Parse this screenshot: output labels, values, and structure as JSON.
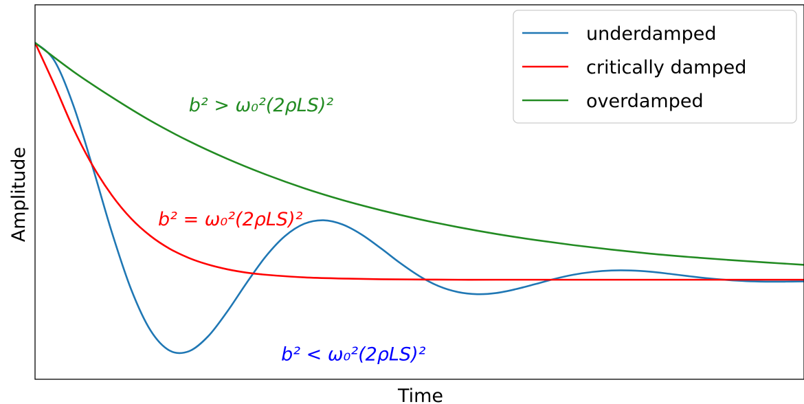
{
  "chart_data": {
    "type": "line",
    "title": "",
    "xlabel": "Time",
    "ylabel": "Amplitude",
    "xlim": [
      0,
      10
    ],
    "ylim": [
      -0.42,
      1.16
    ],
    "grid": false,
    "x_ticks_shown": false,
    "y_ticks_shown": false,
    "legend_position": "top-right",
    "series": [
      {
        "name": "underdamped",
        "color": "#1f77b4",
        "x": [
          0,
          0.25,
          0.5,
          0.75,
          1.0,
          1.25,
          1.5,
          1.75,
          2.0,
          2.25,
          2.5,
          2.75,
          3.0,
          3.25,
          3.5,
          3.75,
          4.0,
          4.25,
          4.5,
          4.75,
          5.0,
          5.25,
          5.5,
          5.75,
          6.0,
          6.25,
          6.5,
          6.75,
          7.0,
          7.25,
          7.5,
          7.75,
          8.0,
          8.25,
          8.5,
          8.75,
          9.0,
          9.25,
          9.5,
          9.75,
          10.0
        ],
        "y": [
          1.0,
          0.925,
          0.734,
          0.474,
          0.199,
          -0.041,
          -0.213,
          -0.299,
          -0.302,
          -0.239,
          -0.134,
          -0.014,
          0.098,
          0.184,
          0.236,
          0.251,
          0.233,
          0.19,
          0.132,
          0.07,
          0.015,
          -0.027,
          -0.052,
          -0.061,
          -0.056,
          -0.04,
          -0.019,
          0.003,
          0.021,
          0.033,
          0.039,
          0.039,
          0.034,
          0.025,
          0.015,
          0.006,
          -0.001,
          -0.006,
          -0.008,
          -0.008,
          -0.007
        ]
      },
      {
        "name": "critically damped",
        "color": "#ff0000",
        "x": [
          0,
          0.25,
          0.5,
          0.75,
          1.0,
          1.25,
          1.5,
          1.75,
          2.0,
          2.25,
          2.5,
          2.75,
          3.0,
          3.5,
          4.0,
          4.5,
          5.0,
          5.5,
          6.0,
          7.0,
          8.0,
          9.0,
          10.0
        ],
        "y": [
          1.0,
          0.823,
          0.637,
          0.481,
          0.356,
          0.258,
          0.185,
          0.131,
          0.092,
          0.064,
          0.044,
          0.03,
          0.021,
          0.01,
          0.005,
          0.002,
          0.001,
          0.0,
          0.0,
          0.0,
          0.0,
          0.0,
          0.0
        ]
      },
      {
        "name": "overdamped",
        "color": "#228b22",
        "x": [
          0,
          0.5,
          1.0,
          1.5,
          2.0,
          2.5,
          3.0,
          3.5,
          4.0,
          4.5,
          5.0,
          5.5,
          6.0,
          6.5,
          7.0,
          7.5,
          8.0,
          8.5,
          9.0,
          9.5,
          10.0
        ],
        "y": [
          1.0,
          0.878,
          0.77,
          0.671,
          0.585,
          0.51,
          0.444,
          0.386,
          0.336,
          0.293,
          0.255,
          0.222,
          0.193,
          0.168,
          0.146,
          0.127,
          0.11,
          0.096,
          0.084,
          0.073,
          0.063
        ]
      }
    ],
    "annotations": [
      {
        "text": "b² > ω₀²(2ρLS)²",
        "color": "#228b22",
        "x": 2.0,
        "y": 0.71
      },
      {
        "text": "b² = ω₀²(2ρLS)²",
        "color": "#ff0000",
        "x": 1.6,
        "y": 0.23
      },
      {
        "text": "b² < ω₀²(2ρLS)²",
        "color": "#0000ff",
        "x": 3.2,
        "y": -0.34
      }
    ]
  }
}
